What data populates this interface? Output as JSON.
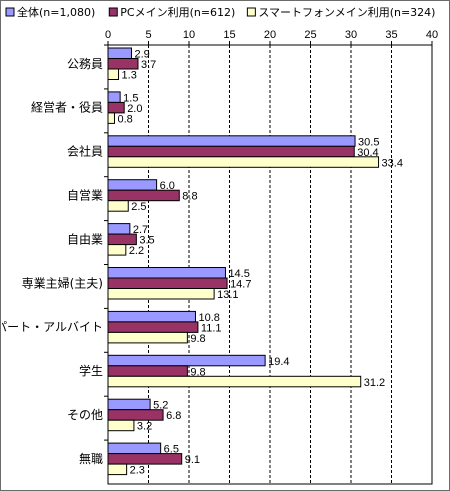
{
  "chart_data": {
    "type": "bar",
    "orientation": "horizontal",
    "title": "",
    "xlabel": "",
    "ylabel": "",
    "xlim": [
      0,
      40
    ],
    "xticks": [
      0,
      5,
      10,
      15,
      20,
      25,
      30,
      35,
      40
    ],
    "grid": "vertical-dashed",
    "legend_position": "top",
    "categories": [
      "公務員",
      "経営者・役員",
      "会社員",
      "自営業",
      "自由業",
      "専業主婦(主夫)",
      "パート・アルバイト",
      "学生",
      "その他",
      "無職"
    ],
    "series": [
      {
        "name": "全体(n=1,080)",
        "color": "#9999ff",
        "values": [
          2.9,
          1.5,
          30.5,
          6.0,
          2.7,
          14.5,
          10.8,
          19.4,
          5.2,
          6.5
        ]
      },
      {
        "name": "PCメイン利用(n=612)",
        "color": "#993366",
        "values": [
          3.7,
          2.0,
          30.4,
          8.8,
          3.5,
          14.7,
          11.1,
          9.8,
          6.8,
          9.1
        ]
      },
      {
        "name": "スマートフォンメイン利用(n=324)",
        "color": "#ffffcc",
        "values": [
          1.3,
          0.8,
          33.4,
          2.5,
          2.2,
          13.1,
          9.8,
          31.2,
          3.2,
          2.3
        ]
      }
    ]
  }
}
